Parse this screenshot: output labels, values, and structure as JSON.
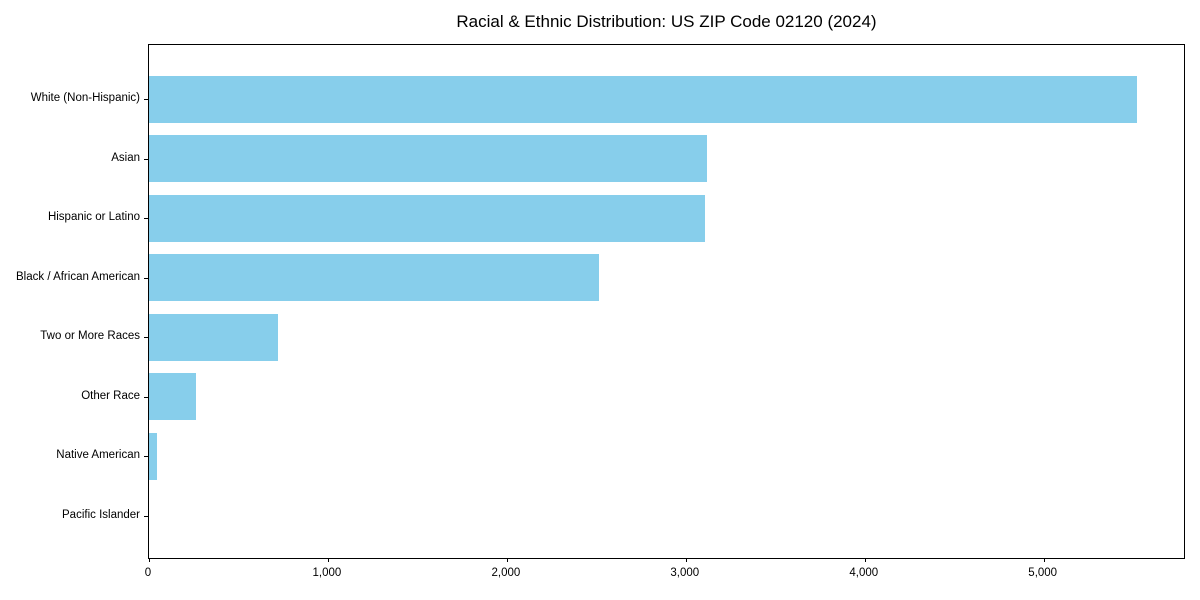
{
  "title": "Racial & Ethnic Distribution: US ZIP Code 02120 (2024)",
  "chart_data": {
    "type": "bar",
    "orientation": "horizontal",
    "title": "Racial & Ethnic Distribution: US ZIP Code 02120 (2024)",
    "xlabel": "",
    "ylabel": "",
    "categories": [
      "White (Non-Hispanic)",
      "Asian",
      "Hispanic or Latino",
      "Black / African American",
      "Two or More Races",
      "Other Race",
      "Native American",
      "Pacific Islander"
    ],
    "values": [
      5520,
      3120,
      3105,
      2515,
      720,
      260,
      45,
      0
    ],
    "xlim": [
      0,
      5795
    ],
    "xticks": {
      "values": [
        0,
        1000,
        2000,
        3000,
        4000,
        5000
      ],
      "labels": [
        "0",
        "1,000",
        "2,000",
        "3,000",
        "4,000",
        "5,000"
      ]
    },
    "bar_color": "#87CEEB",
    "text_color": "#000000",
    "grid": false,
    "legend": null
  }
}
